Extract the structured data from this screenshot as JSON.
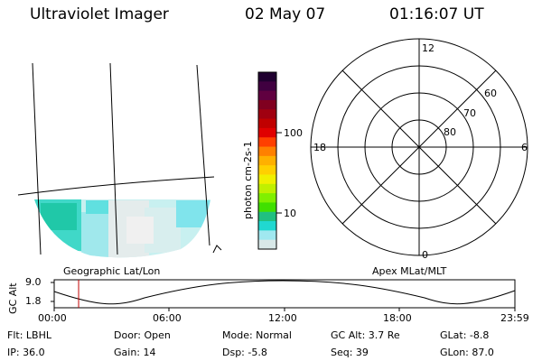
{
  "header": {
    "instrument": "Ultraviolet Imager",
    "date": "02 May 07",
    "time": "01:16:07 UT"
  },
  "colorbar": {
    "unit_label": "photon cm-2s-1",
    "ticks": [
      "100",
      "10"
    ],
    "colors": [
      "#200030",
      "#400040",
      "#600040",
      "#800020",
      "#a00010",
      "#c00000",
      "#e00000",
      "#ff4000",
      "#ff8000",
      "#ffb000",
      "#ffd000",
      "#f0f000",
      "#c0f000",
      "#80f000",
      "#40e000",
      "#20c080",
      "#20d8d0",
      "#a0e8f0",
      "#d8e8e8"
    ]
  },
  "geo_panel": {
    "label": "Geographic Lat/Lon"
  },
  "polar_panel": {
    "label": "Apex MLat/MLT",
    "mlt_labels": {
      "top": "12",
      "left": "18",
      "right": "6",
      "bottom": "0"
    },
    "lat_labels": [
      "60",
      "70",
      "80"
    ]
  },
  "timeline": {
    "ylabel": "GC Alt",
    "ytick_high": "9.0",
    "ytick_low": "1.8",
    "xticks": [
      "00:00",
      "06:00",
      "12:00",
      "18:00",
      "23:59"
    ],
    "current_time_fraction": 0.053
  },
  "footer": {
    "flt": "Flt: LBHL",
    "door": "Door: Open",
    "mode": "Mode: Normal",
    "gcalt": "GC Alt: 3.7 Re",
    "glat": "GLat:  -8.8",
    "ip": "IP: 36.0",
    "gain": "Gain: 14",
    "dsp": "Dsp:   -5.8",
    "seq": "Seq: 39",
    "glon": "GLon:  87.0"
  }
}
